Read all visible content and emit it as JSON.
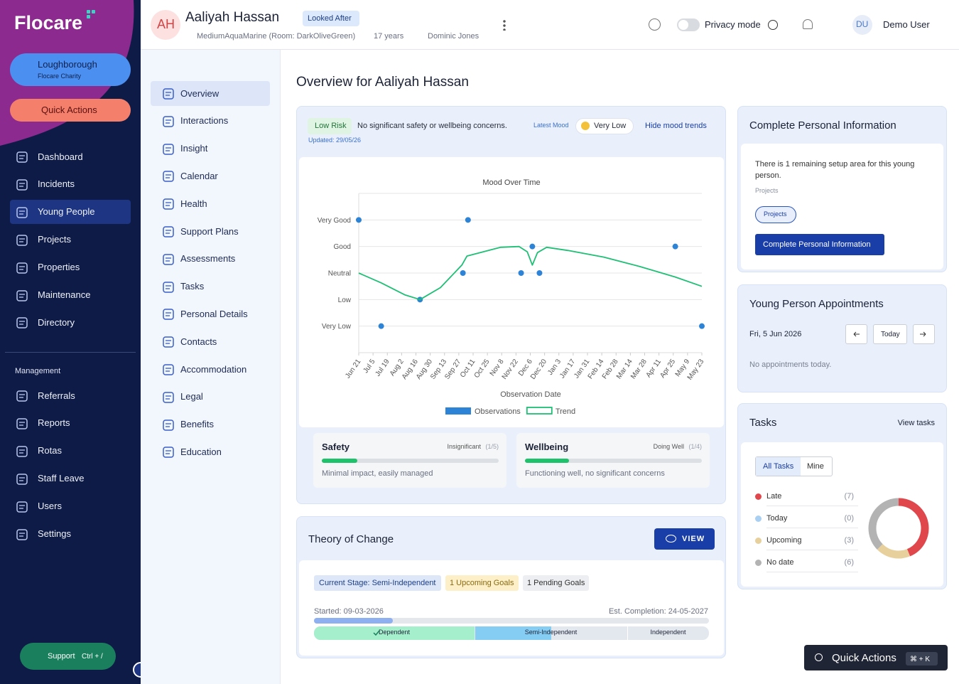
{
  "sidebar": {
    "logo": "Flocare",
    "org_name": "Loughborough",
    "org_sub": "Flocare Charity",
    "quick_actions": "Quick Actions",
    "nav": [
      "Dashboard",
      "Incidents",
      "Young People",
      "Projects",
      "Properties",
      "Maintenance",
      "Directory"
    ],
    "management_title": "Management",
    "management": [
      "Referrals",
      "Reports",
      "Rotas",
      "Staff Leave",
      "Users",
      "Settings"
    ],
    "support": "Support",
    "support_keys": "Ctrl + /"
  },
  "header": {
    "initials": "AH",
    "name": "Aaliyah Hassan",
    "status": "Looked After",
    "location": "MediumAquaMarine (Room: DarkOliveGreen)",
    "age": "17 years",
    "worker": "Dominic Jones",
    "privacy": "Privacy mode",
    "user_initials": "DU",
    "user": "Demo User"
  },
  "subnav": [
    "Overview",
    "Interactions",
    "Insight",
    "Calendar",
    "Health",
    "Support Plans",
    "Assessments",
    "Tasks",
    "Personal Details",
    "Contacts",
    "Accommodation",
    "Legal",
    "Benefits",
    "Education"
  ],
  "page_title": "Overview for Aaliyah Hassan",
  "mood": {
    "risk": "Low Risk",
    "summary": "No significant safety or wellbeing concerns.",
    "updated": "Updated: 29/05/26",
    "latest_label": "Latest Mood",
    "latest": "Very Low",
    "toggle": "Hide mood trends"
  },
  "assessments": [
    {
      "title": "Safety",
      "level": "Insignificant",
      "score_label": "(1/5)",
      "score": 1,
      "max": 5,
      "note": "Minimal impact, easily managed"
    },
    {
      "title": "Wellbeing",
      "level": "Doing Well",
      "score_label": "(1/4)",
      "score": 1,
      "max": 4,
      "note": "Functioning well, no significant concerns"
    }
  ],
  "theory": {
    "title": "Theory of Change",
    "button": "VIEW",
    "stage": "Current Stage: Semi-Independent",
    "upcoming": "1 Upcoming Goals",
    "pending": "1 Pending Goals",
    "started": "Started: 09-03-2026",
    "completion": "Est. Completion: 24-05-2027",
    "progress": 20,
    "stages": [
      "Dependent",
      "Semi-Independent",
      "Independent"
    ]
  },
  "personal_info": {
    "title": "Complete Personal Information",
    "text": "There is 1 remaining setup area for this young person.",
    "sub": "Projects",
    "chip": "Projects",
    "button": "Complete Personal Information"
  },
  "appointments": {
    "title": "Young Person Appointments",
    "date": "Fri, 5 Jun 2026",
    "today": "Today",
    "empty": "No appointments today."
  },
  "tasks": {
    "title": "Tasks",
    "link": "View tasks",
    "tabs": [
      "All Tasks",
      "Mine"
    ]
  },
  "quick_bar": {
    "label": "Quick Actions",
    "keys": "⌘ + K"
  },
  "chart_data": [
    {
      "type": "scatter",
      "title": "Mood Over Time",
      "xlabel": "Observation Date",
      "grid": true,
      "xlim": [
        "Jun 21",
        "May 23"
      ],
      "xticks": [
        "Jun 21",
        "Jul 5",
        "Jul 19",
        "Aug 2",
        "Aug 16",
        "Aug 30",
        "Sep 13",
        "Sep 27",
        "Oct 11",
        "Oct 25",
        "Nov 8",
        "Nov 22",
        "Dec 6",
        "Dec 20",
        "Jan 3",
        "Jan 17",
        "Jan 31",
        "Feb 14",
        "Feb 28",
        "Mar 14",
        "Mar 28",
        "Apr 11",
        "Apr 25",
        "May 9",
        "May 23"
      ],
      "ylim": [
        0,
        6
      ],
      "yticks": [
        {
          "value": 1,
          "label": "Very Low"
        },
        {
          "value": 2,
          "label": "Low"
        },
        {
          "value": 3,
          "label": "Neutral"
        },
        {
          "value": 4,
          "label": "Good"
        },
        {
          "value": 5,
          "label": "Very Good"
        }
      ],
      "series": [
        {
          "name": "Observations",
          "type": "scatter",
          "color": "#2d83d6",
          "x": [
            "Jun 21",
            "Jul 13",
            "Aug 20",
            "Oct 1",
            "Oct 6",
            "Nov 27",
            "Dec 8",
            "Dec 15",
            "Apr 27",
            "May 23"
          ],
          "values": [
            5,
            1,
            2,
            3,
            5,
            3,
            4,
            3,
            4,
            1
          ]
        },
        {
          "name": "Trend",
          "type": "line",
          "color": "#1fbf75",
          "x": [
            "Jun 21",
            "Jul 13",
            "Aug 5",
            "Aug 20",
            "Sep 9",
            "Sep 30",
            "Oct 5",
            "Oct 21",
            "Nov 7",
            "Nov 25",
            "Dec 3",
            "Dec 8",
            "Dec 13",
            "Dec 22",
            "Jan 12",
            "Feb 16",
            "Mar 23",
            "Apr 27",
            "May 23"
          ],
          "values": [
            3.0,
            2.63,
            2.18,
            2.0,
            2.45,
            3.3,
            3.64,
            3.8,
            3.97,
            4.0,
            3.8,
            3.3,
            3.77,
            3.97,
            3.85,
            3.6,
            3.25,
            2.85,
            2.5
          ]
        }
      ]
    },
    {
      "type": "donut",
      "categories": [
        "Late",
        "Today",
        "Upcoming",
        "No date"
      ],
      "values": [
        7,
        0,
        3,
        6
      ],
      "value_labels": [
        "(7)",
        "(0)",
        "(3)",
        "(6)"
      ],
      "colors": [
        "#e0474c",
        "#a9cff2",
        "#e7d09c",
        "#b3b3b3"
      ]
    }
  ]
}
